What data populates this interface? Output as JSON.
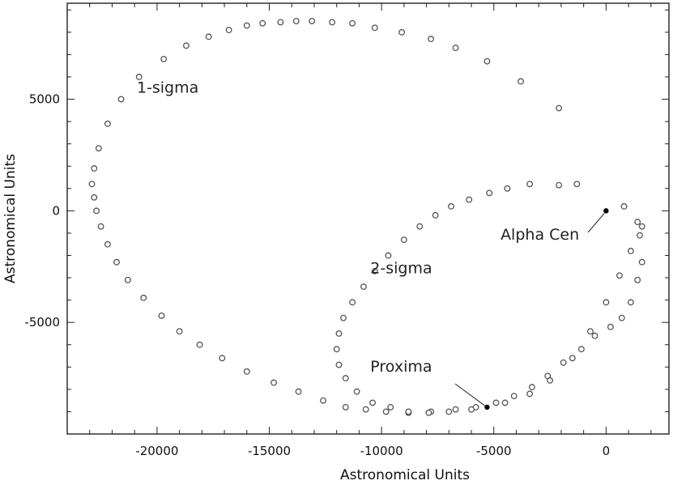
{
  "chart_data": {
    "type": "scatter",
    "title": "",
    "xlabel": "Astronomical Units",
    "ylabel": "Astronomical Units",
    "xlim": [
      -24000,
      2800
    ],
    "ylim": [
      -10000,
      9300
    ],
    "xticks": [
      -20000,
      -15000,
      -10000,
      -5000,
      0
    ],
    "xtick_labels": [
      "-20000",
      "-15000",
      "-10000",
      "-5000",
      "0"
    ],
    "yticks": [
      -5000,
      0,
      5000
    ],
    "ytick_labels": [
      "-5000",
      "0",
      "5000"
    ],
    "grid": false,
    "series": [
      {
        "name": "1-sigma",
        "marker": "open-circle",
        "points": [
          [
            -2100,
            4600
          ],
          [
            -3800,
            5800
          ],
          [
            -5300,
            6700
          ],
          [
            -6700,
            7300
          ],
          [
            -7800,
            7700
          ],
          [
            -9100,
            8000
          ],
          [
            -10300,
            8200
          ],
          [
            -11300,
            8400
          ],
          [
            -12200,
            8450
          ],
          [
            -13100,
            8500
          ],
          [
            -13800,
            8500
          ],
          [
            -14500,
            8450
          ],
          [
            -15300,
            8400
          ],
          [
            -16000,
            8300
          ],
          [
            -16800,
            8100
          ],
          [
            -17700,
            7800
          ],
          [
            -18700,
            7400
          ],
          [
            -19700,
            6800
          ],
          [
            -20800,
            6000
          ],
          [
            -21600,
            5000
          ],
          [
            -22200,
            3900
          ],
          [
            -22600,
            2800
          ],
          [
            -22800,
            1900
          ],
          [
            -22900,
            1200
          ],
          [
            -22800,
            600
          ],
          [
            -22700,
            0
          ],
          [
            -22500,
            -700
          ],
          [
            -22200,
            -1500
          ],
          [
            -21800,
            -2300
          ],
          [
            -21300,
            -3100
          ],
          [
            -20600,
            -3900
          ],
          [
            -19800,
            -4700
          ],
          [
            -19000,
            -5400
          ],
          [
            -18100,
            -6000
          ],
          [
            -17100,
            -6600
          ],
          [
            -16000,
            -7200
          ],
          [
            -14800,
            -7700
          ],
          [
            -13700,
            -8100
          ],
          [
            -12600,
            -8500
          ],
          [
            -11600,
            -8800
          ],
          [
            -10700,
            -8900
          ],
          [
            -9800,
            -9000
          ],
          [
            -8800,
            -9050
          ],
          [
            -7800,
            -9000
          ],
          [
            -6700,
            -8900
          ],
          [
            -5800,
            -8800
          ],
          [
            -4900,
            -8600
          ],
          [
            -4100,
            -8300
          ],
          [
            -3300,
            -7900
          ],
          [
            -2600,
            -7400
          ],
          [
            -1900,
            -6800
          ],
          [
            -1100,
            -6200
          ],
          [
            -500,
            -5600
          ],
          [
            200,
            -5200
          ],
          [
            700,
            -4800
          ],
          [
            1100,
            -4100
          ],
          [
            1400,
            -3100
          ],
          [
            1600,
            -2300
          ],
          [
            1500,
            -1100
          ],
          [
            1400,
            -500
          ]
        ]
      },
      {
        "name": "2-sigma",
        "marker": "open-circle",
        "points": [
          [
            -1300,
            1200
          ],
          [
            -2100,
            1150
          ],
          [
            -3400,
            1200
          ],
          [
            -4400,
            1000
          ],
          [
            -5200,
            800
          ],
          [
            -6100,
            500
          ],
          [
            -6900,
            200
          ],
          [
            -7600,
            -200
          ],
          [
            -8300,
            -700
          ],
          [
            -9000,
            -1300
          ],
          [
            -9700,
            -2000
          ],
          [
            -10300,
            -2700
          ],
          [
            -10800,
            -3400
          ],
          [
            -11300,
            -4100
          ],
          [
            -11700,
            -4800
          ],
          [
            -11900,
            -5500
          ],
          [
            -12000,
            -6200
          ],
          [
            -11900,
            -6900
          ],
          [
            -11600,
            -7500
          ],
          [
            -11100,
            -8100
          ],
          [
            -10400,
            -8600
          ],
          [
            -9600,
            -8800
          ],
          [
            -8800,
            -9000
          ],
          [
            -7900,
            -9050
          ],
          [
            -7000,
            -9000
          ],
          [
            -6000,
            -8900
          ],
          [
            -4500,
            -8600
          ],
          [
            -3400,
            -8200
          ],
          [
            -2500,
            -7600
          ],
          [
            -1500,
            -6600
          ],
          [
            -700,
            -5400
          ],
          [
            0,
            -4100
          ],
          [
            600,
            -2900
          ],
          [
            1100,
            -1800
          ],
          [
            1600,
            -700
          ],
          [
            800,
            200
          ]
        ]
      }
    ],
    "stars": [
      {
        "name": "Alpha Cen",
        "x": 0,
        "y": 0
      },
      {
        "name": "Proxima",
        "x": -5300,
        "y": -8800
      }
    ],
    "annotations": [
      {
        "text": "1-sigma",
        "x": -20900,
        "y": 5300
      },
      {
        "text": "2-sigma",
        "x": -10500,
        "y": -2800
      },
      {
        "text": "Alpha Cen",
        "x": -4700,
        "y": -1300
      },
      {
        "text": "Proxima",
        "x": -10500,
        "y": -7200
      }
    ]
  }
}
